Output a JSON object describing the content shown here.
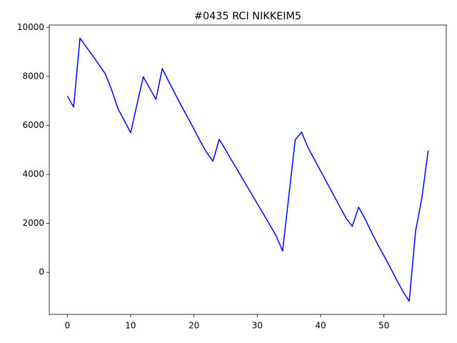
{
  "chart_data": {
    "type": "line",
    "title": "#0435 RCI NIKKEIM5",
    "x": [
      0,
      1,
      2,
      3,
      4,
      5,
      6,
      7,
      8,
      9,
      10,
      11,
      12,
      13,
      14,
      15,
      16,
      17,
      18,
      19,
      20,
      21,
      22,
      23,
      24,
      25,
      26,
      27,
      28,
      29,
      30,
      31,
      32,
      33,
      34,
      35,
      36,
      37,
      38,
      39,
      40,
      41,
      42,
      43,
      44,
      45,
      46,
      47,
      48,
      49,
      50,
      51,
      52,
      53,
      54,
      55,
      56,
      57
    ],
    "series": [
      {
        "name": "RCI",
        "color": "#0000ff",
        "values": [
          7200,
          6750,
          9560,
          9200,
          8850,
          8480,
          8100,
          7450,
          6680,
          6200,
          5700,
          6850,
          7980,
          7520,
          7060,
          8320,
          7800,
          7300,
          6800,
          6330,
          5850,
          5350,
          4900,
          4540,
          5430,
          5000,
          4550,
          4120,
          3680,
          3250,
          2800,
          2370,
          1930,
          1480,
          870,
          3150,
          5420,
          5720,
          5100,
          4620,
          4140,
          3660,
          3180,
          2700,
          2220,
          1880,
          2660,
          2200,
          1650,
          1150,
          680,
          200,
          -300,
          -780,
          -1180,
          1680,
          3050,
          4980
        ]
      }
    ],
    "xlim": [
      -2.85,
      59.85
    ],
    "ylim": [
      -1717,
      10097
    ],
    "xticks": [
      0,
      10,
      20,
      30,
      40,
      50
    ],
    "yticks": [
      0,
      2000,
      4000,
      6000,
      8000,
      10000
    ]
  }
}
